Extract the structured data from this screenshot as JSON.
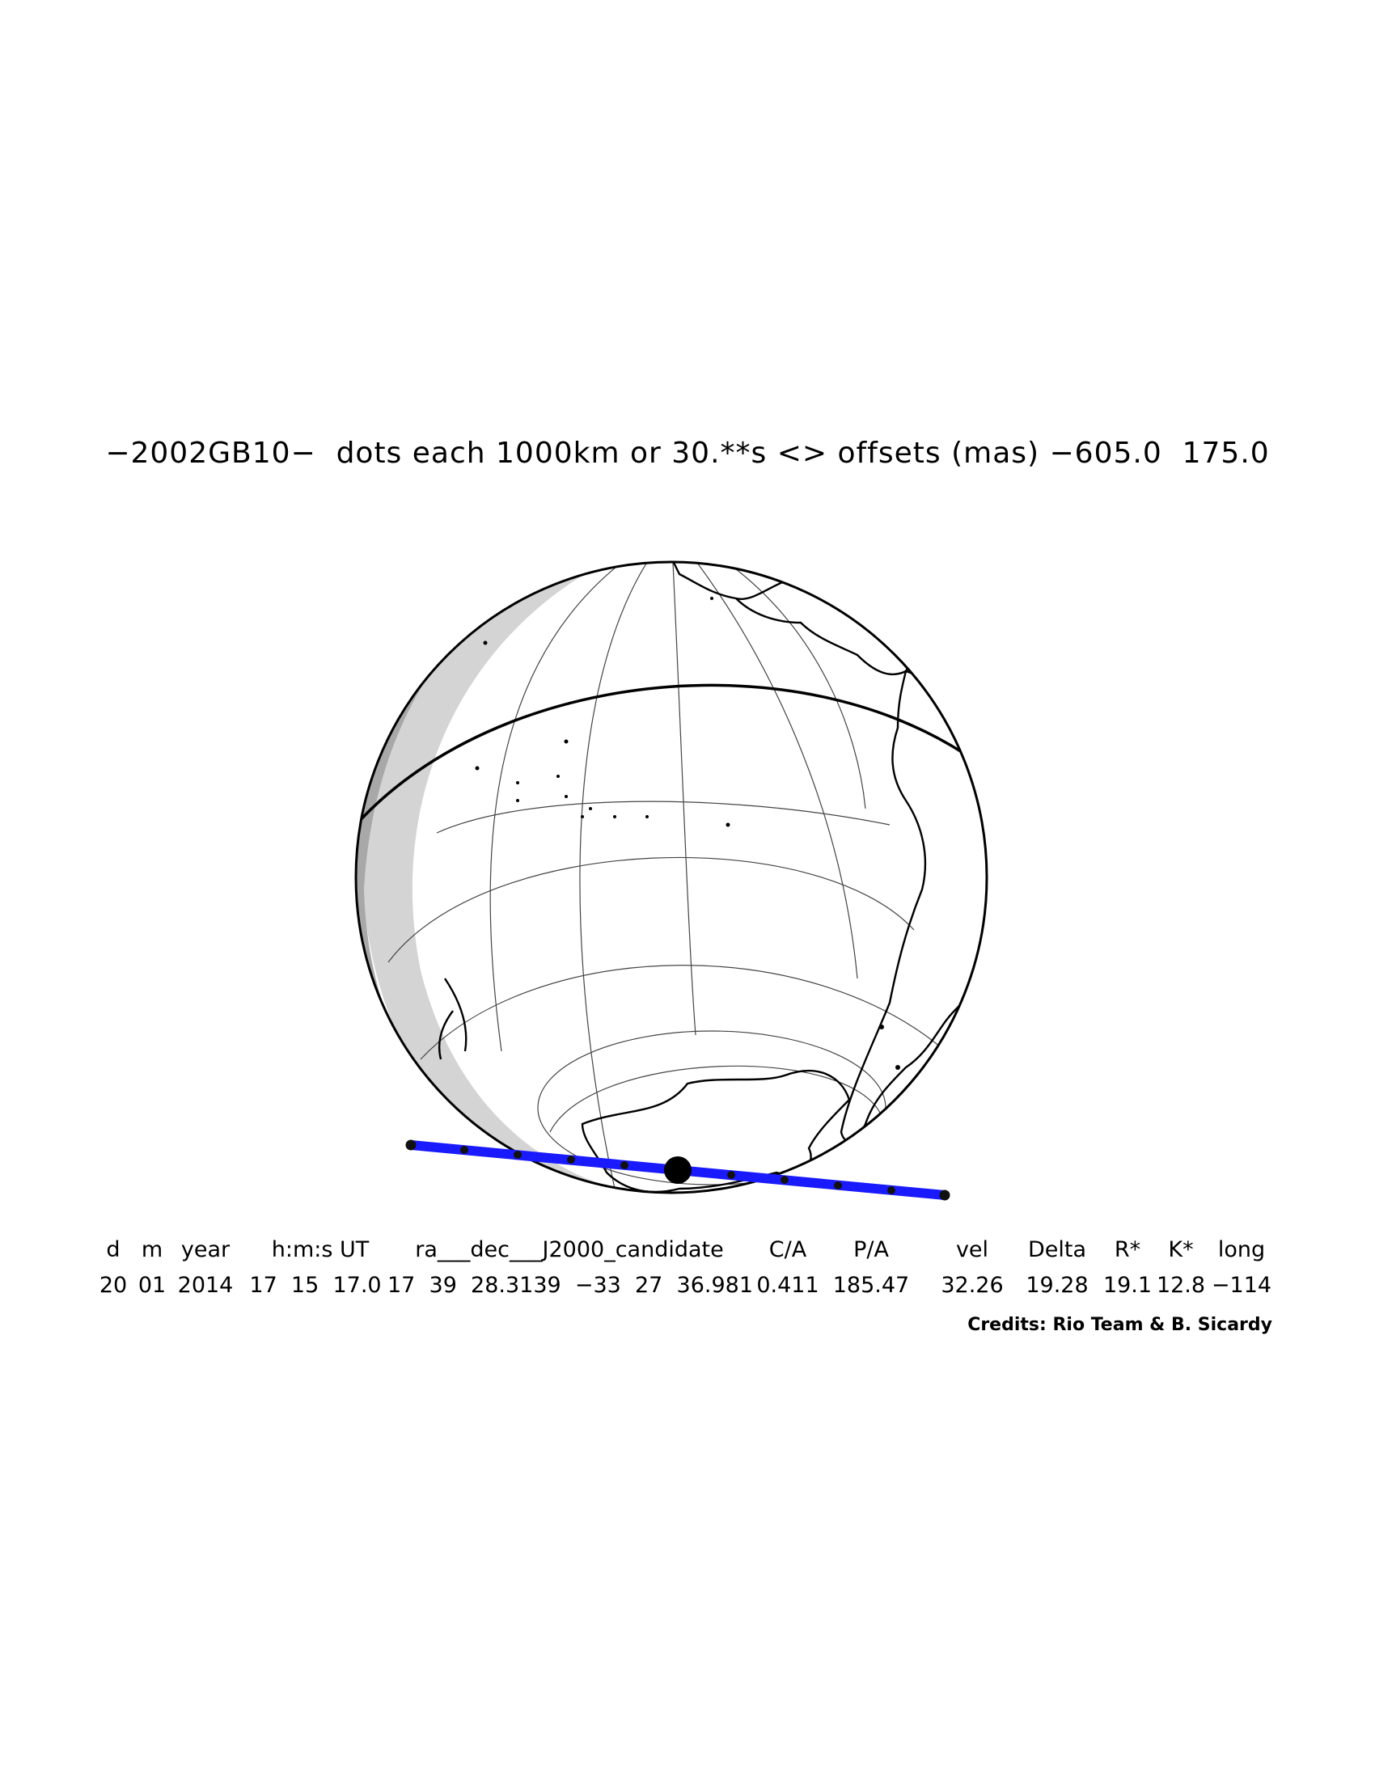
{
  "title": "−2002GB10−  dots each 1000km or 30.**s <> offsets (mas) −605.0  175.0",
  "table": {
    "headers": [
      "d",
      "m",
      "year",
      "h:m:s UT",
      "ra___dec___J2000_candidate",
      "C/A",
      "P/A",
      "vel",
      "Delta",
      "R*",
      "K*",
      "long"
    ],
    "values": [
      "20",
      "01",
      "2014",
      "17  15  17.0",
      "17  39  28.3139  −33  27  36.981",
      "0.411",
      "185.47",
      "32.26",
      "19.28",
      "19.1",
      "12.8",
      "−114"
    ]
  },
  "credits": "Credits: Rio Team & B. Sicardy",
  "map": {
    "projection": "orthographic",
    "shadow_path_color": "#1a1aff",
    "night_shade_colors": [
      "#d4d4d4",
      "#a8a8a8"
    ],
    "path_dots_count": 11,
    "central_dot": "closest-approach"
  }
}
